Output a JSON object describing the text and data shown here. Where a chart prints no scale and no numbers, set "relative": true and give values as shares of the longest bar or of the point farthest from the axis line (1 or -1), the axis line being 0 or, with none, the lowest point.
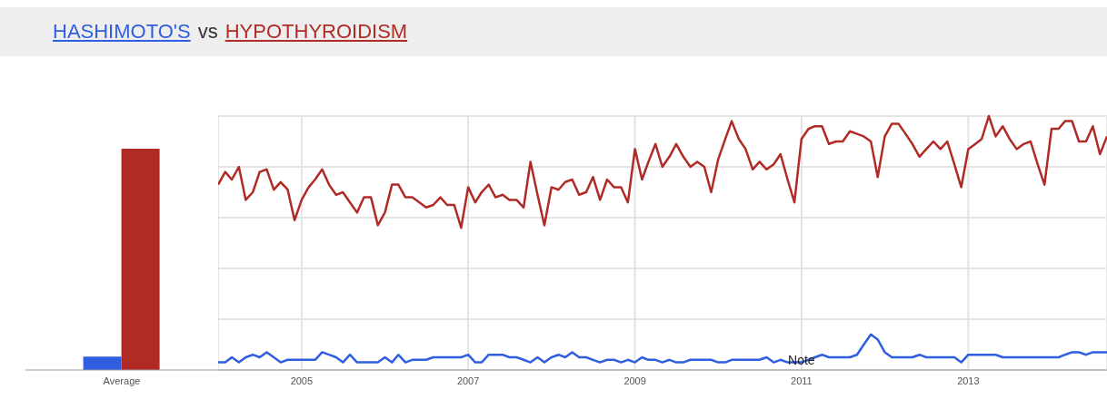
{
  "chart_data": [
    {
      "type": "bar",
      "categories": [
        "Average"
      ],
      "relative": true,
      "series": [
        {
          "color": "#2f5fe0",
          "values": [
            0.06
          ]
        },
        {
          "color": "#b02a26",
          "values": [
            1
          ]
        }
      ]
    },
    {
      "type": "line",
      "relative": true,
      "legend": "top left",
      "grid": true,
      "annotations": [
        "vs",
        {
          "text": "Note",
          "x": "2011-01",
          "y": 0.04
        }
      ],
      "xlim": [
        "2004-01",
        "2014-09"
      ],
      "xticks": [
        "2005",
        "2007",
        "2009",
        "2011",
        "2013"
      ],
      "x": [
        "2004-01",
        "2004-02",
        "2004-03",
        "2004-04",
        "2004-05",
        "2004-06",
        "2004-07",
        "2004-08",
        "2004-09",
        "2004-10",
        "2004-11",
        "2004-12",
        "2005-01",
        "2005-02",
        "2005-03",
        "2005-04",
        "2005-05",
        "2005-06",
        "2005-07",
        "2005-08",
        "2005-09",
        "2005-10",
        "2005-11",
        "2005-12",
        "2006-01",
        "2006-02",
        "2006-03",
        "2006-04",
        "2006-05",
        "2006-06",
        "2006-07",
        "2006-08",
        "2006-09",
        "2006-10",
        "2006-11",
        "2006-12",
        "2007-01",
        "2007-02",
        "2007-03",
        "2007-04",
        "2007-05",
        "2007-06",
        "2007-07",
        "2007-08",
        "2007-09",
        "2007-10",
        "2007-11",
        "2007-12",
        "2008-01",
        "2008-02",
        "2008-03",
        "2008-04",
        "2008-05",
        "2008-06",
        "2008-07",
        "2008-08",
        "2008-09",
        "2008-10",
        "2008-11",
        "2008-12",
        "2009-01",
        "2009-02",
        "2009-03",
        "2009-04",
        "2009-05",
        "2009-06",
        "2009-07",
        "2009-08",
        "2009-09",
        "2009-10",
        "2009-11",
        "2009-12",
        "2010-01",
        "2010-02",
        "2010-03",
        "2010-04",
        "2010-05",
        "2010-06",
        "2010-07",
        "2010-08",
        "2010-09",
        "2010-10",
        "2010-11",
        "2010-12",
        "2011-01",
        "2011-02",
        "2011-03",
        "2011-04",
        "2011-05",
        "2011-06",
        "2011-07",
        "2011-08",
        "2011-09",
        "2011-10",
        "2011-11",
        "2011-12",
        "2012-01",
        "2012-02",
        "2012-03",
        "2012-04",
        "2012-05",
        "2012-06",
        "2012-07",
        "2012-08",
        "2012-09",
        "2012-10",
        "2012-11",
        "2012-12",
        "2013-01",
        "2013-02",
        "2013-03",
        "2013-04",
        "2013-05",
        "2013-06",
        "2013-07",
        "2013-08",
        "2013-09",
        "2013-10",
        "2013-11",
        "2013-12",
        "2014-01",
        "2014-02",
        "2014-03",
        "2014-04",
        "2014-05",
        "2014-06",
        "2014-07",
        "2014-08",
        "2014-09"
      ],
      "series": [
        {
          "name": "HASHIMOTO'S",
          "color": "#2f5fe0",
          "values": [
            0.03,
            0.03,
            0.05,
            0.03,
            0.05,
            0.06,
            0.05,
            0.07,
            0.05,
            0.03,
            0.04,
            0.04,
            0.04,
            0.04,
            0.04,
            0.07,
            0.06,
            0.05,
            0.03,
            0.06,
            0.03,
            0.03,
            0.03,
            0.03,
            0.05,
            0.03,
            0.06,
            0.03,
            0.04,
            0.04,
            0.04,
            0.05,
            0.05,
            0.05,
            0.05,
            0.05,
            0.06,
            0.03,
            0.03,
            0.06,
            0.06,
            0.06,
            0.05,
            0.05,
            0.04,
            0.03,
            0.05,
            0.03,
            0.05,
            0.06,
            0.05,
            0.07,
            0.05,
            0.05,
            0.04,
            0.03,
            0.04,
            0.04,
            0.03,
            0.04,
            0.03,
            0.05,
            0.04,
            0.04,
            0.03,
            0.04,
            0.03,
            0.03,
            0.04,
            0.04,
            0.04,
            0.04,
            0.03,
            0.03,
            0.04,
            0.04,
            0.04,
            0.04,
            0.04,
            0.05,
            0.03,
            0.04,
            0.03,
            0.03,
            0.03,
            0.04,
            0.05,
            0.06,
            0.05,
            0.05,
            0.05,
            0.05,
            0.06,
            0.1,
            0.14,
            0.12,
            0.07,
            0.05,
            0.05,
            0.05,
            0.05,
            0.06,
            0.05,
            0.05,
            0.05,
            0.05,
            0.05,
            0.03,
            0.06,
            0.06,
            0.06,
            0.06,
            0.06,
            0.05,
            0.05,
            0.05,
            0.05,
            0.05,
            0.05,
            0.05,
            0.05,
            0.05,
            0.06,
            0.07,
            0.07,
            0.06,
            0.07,
            0.07,
            0.07
          ]
        },
        {
          "name": "HYPOTHYROIDISM",
          "color": "#b02a26",
          "values": [
            0.73,
            0.78,
            0.75,
            0.8,
            0.67,
            0.7,
            0.78,
            0.79,
            0.71,
            0.74,
            0.71,
            0.59,
            0.67,
            0.72,
            0.75,
            0.79,
            0.73,
            0.69,
            0.7,
            0.66,
            0.62,
            0.68,
            0.68,
            0.57,
            0.62,
            0.73,
            0.73,
            0.68,
            0.68,
            0.66,
            0.64,
            0.65,
            0.68,
            0.65,
            0.65,
            0.56,
            0.72,
            0.66,
            0.7,
            0.73,
            0.68,
            0.69,
            0.67,
            0.67,
            0.64,
            0.82,
            0.69,
            0.57,
            0.72,
            0.71,
            0.74,
            0.75,
            0.69,
            0.7,
            0.76,
            0.67,
            0.75,
            0.72,
            0.72,
            0.66,
            0.87,
            0.75,
            0.82,
            0.89,
            0.8,
            0.84,
            0.89,
            0.84,
            0.8,
            0.82,
            0.8,
            0.7,
            0.83,
            0.91,
            0.98,
            0.91,
            0.87,
            0.79,
            0.82,
            0.79,
            0.81,
            0.85,
            0.75,
            0.66,
            0.91,
            0.95,
            0.96,
            0.96,
            0.89,
            0.9,
            0.9,
            0.94,
            0.93,
            0.92,
            0.9,
            0.76,
            0.92,
            0.97,
            0.97,
            0.93,
            0.89,
            0.84,
            0.87,
            0.9,
            0.87,
            0.9,
            0.81,
            0.72,
            0.87,
            0.89,
            0.91,
            1,
            0.92,
            0.96,
            0.91,
            0.87,
            0.89,
            0.9,
            0.81,
            0.73,
            0.95,
            0.95,
            0.98,
            0.98,
            0.9,
            0.9,
            0.96,
            0.85,
            0.92
          ]
        }
      ]
    }
  ]
}
